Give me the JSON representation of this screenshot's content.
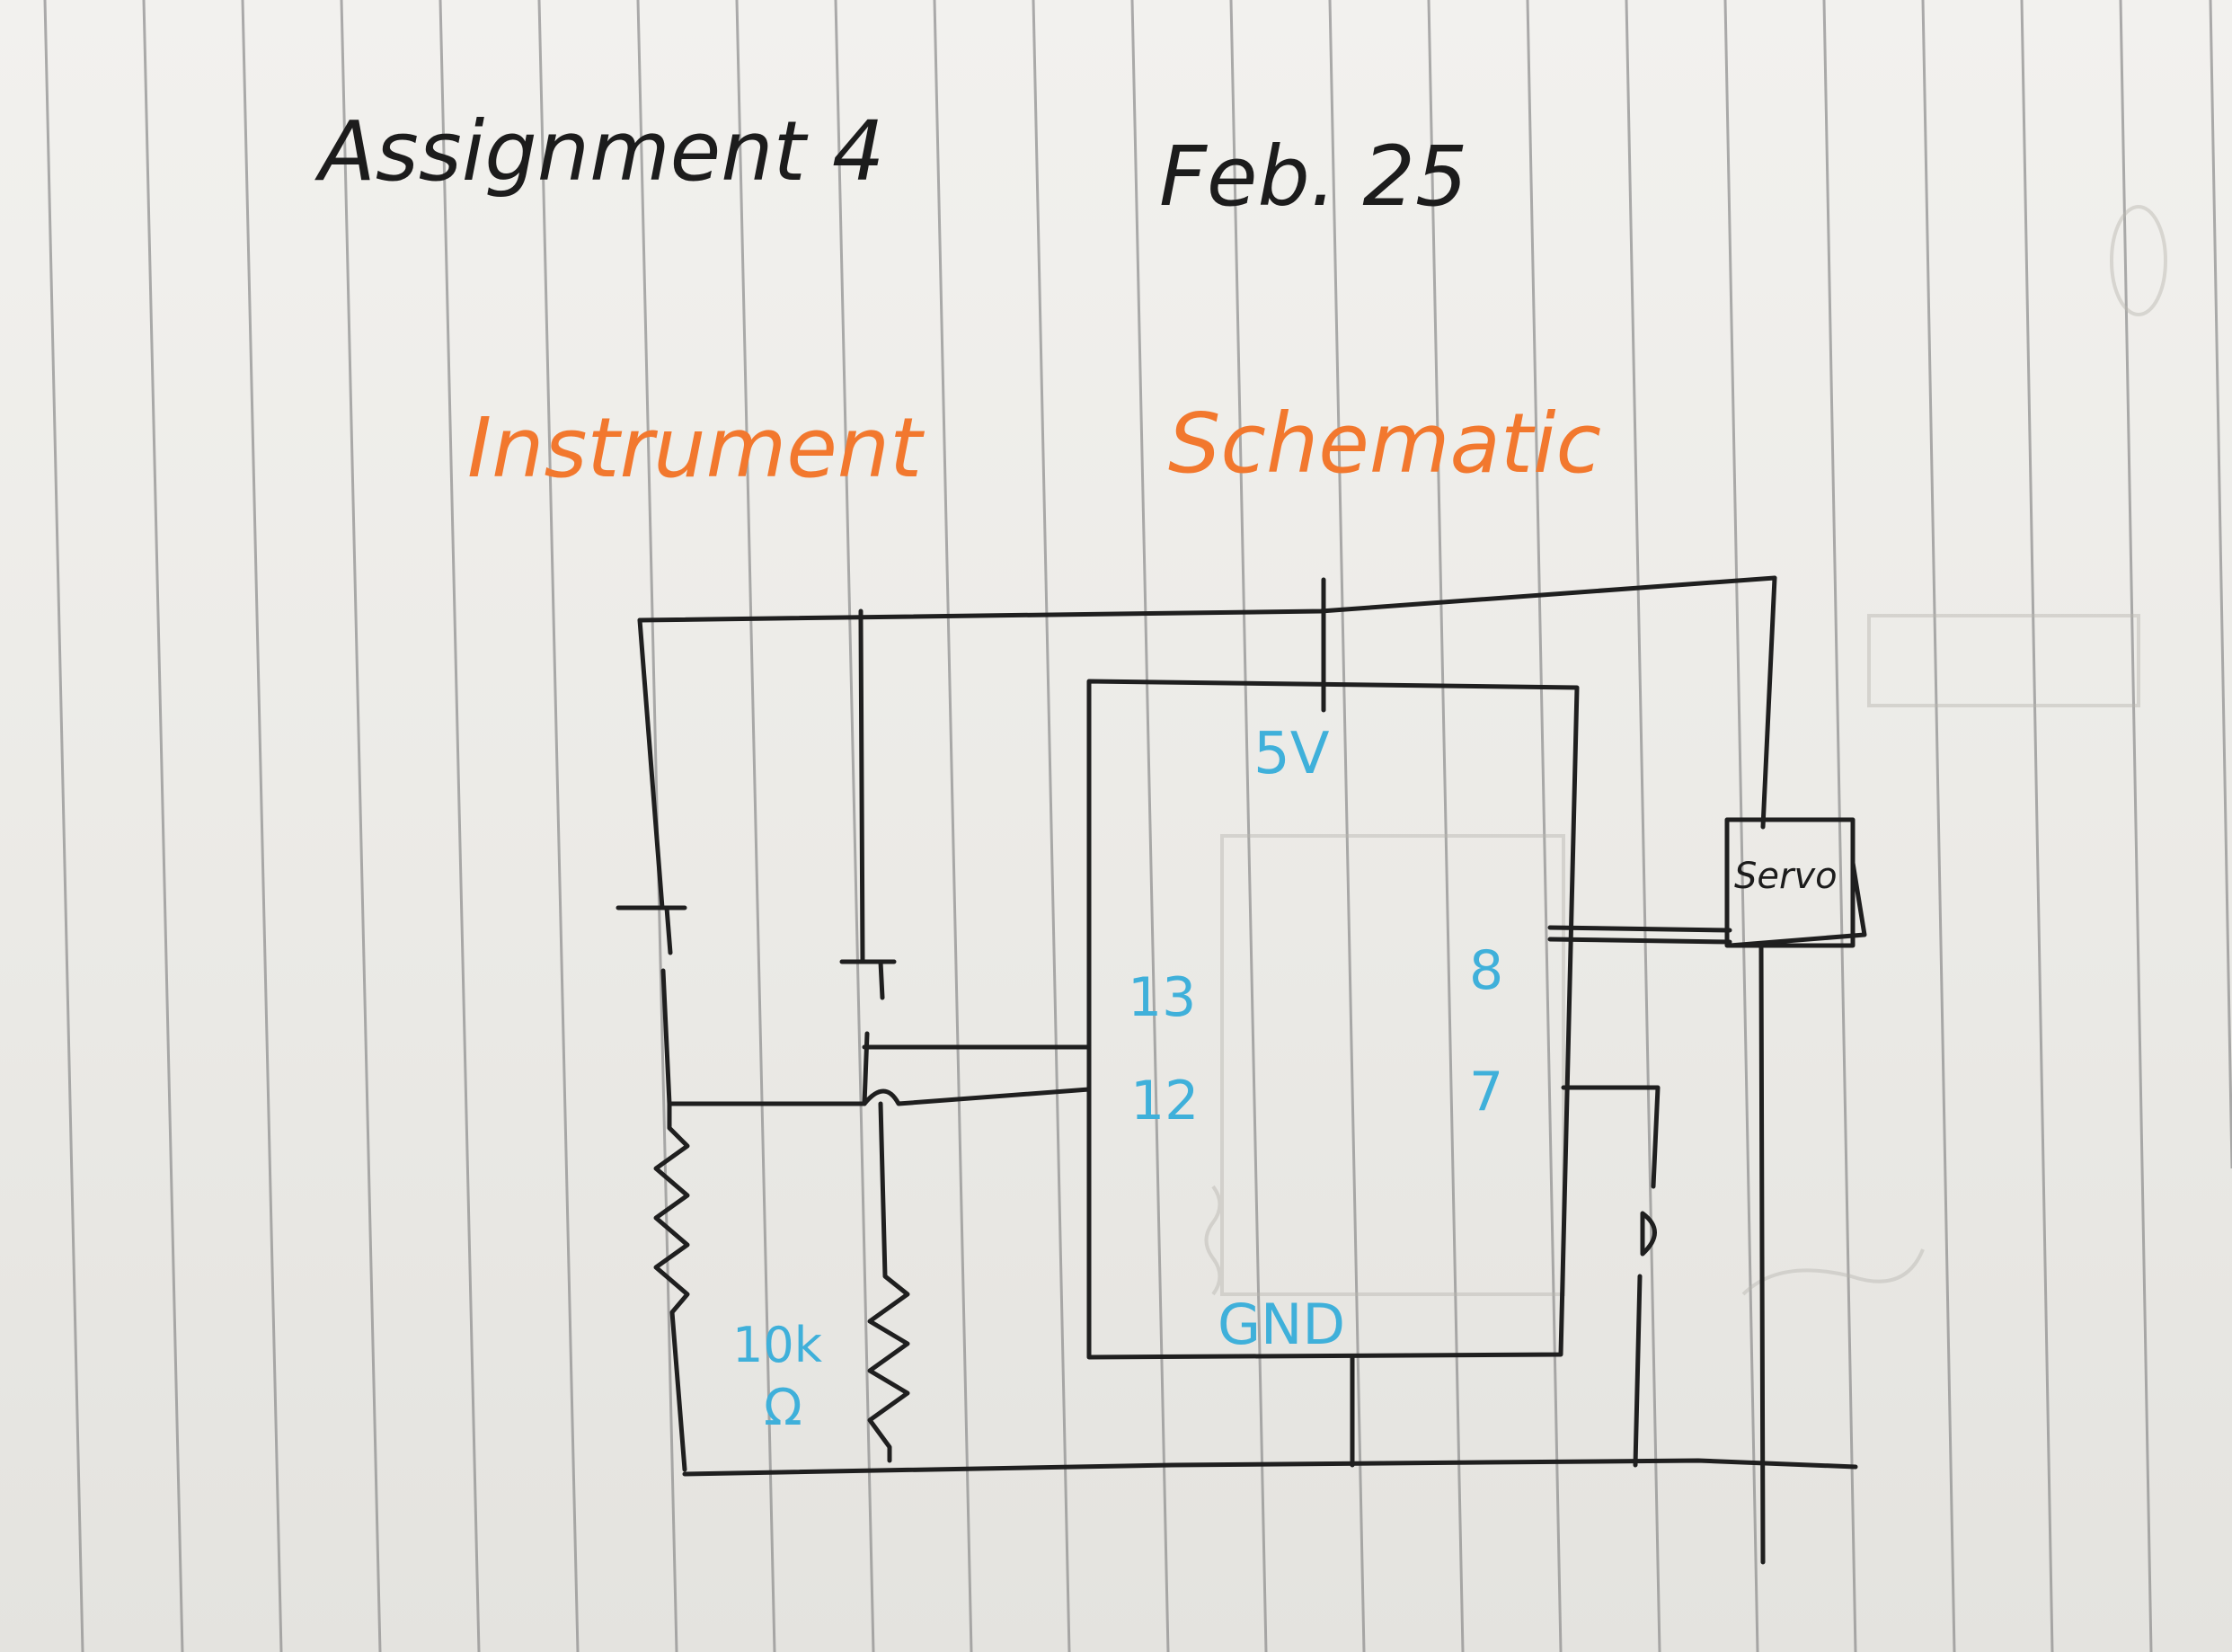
{
  "header": {
    "title": "Assignment 4",
    "date": "Feb. 25",
    "subtitle_left": "Instrument",
    "subtitle_right": "Schematic"
  },
  "schematic": {
    "labels": {
      "power": "5V",
      "pin13": "13",
      "pin12": "12",
      "pin8": "8",
      "pin7": "7",
      "ground": "GND",
      "servo": "Servo",
      "resistor_value": "10k",
      "resistor_unit": "Ω"
    }
  },
  "colors": {
    "ink": "#1c1c1c",
    "orange": "#f2782e",
    "blue": "#3fb0da",
    "rule": "#8c8c8c"
  }
}
